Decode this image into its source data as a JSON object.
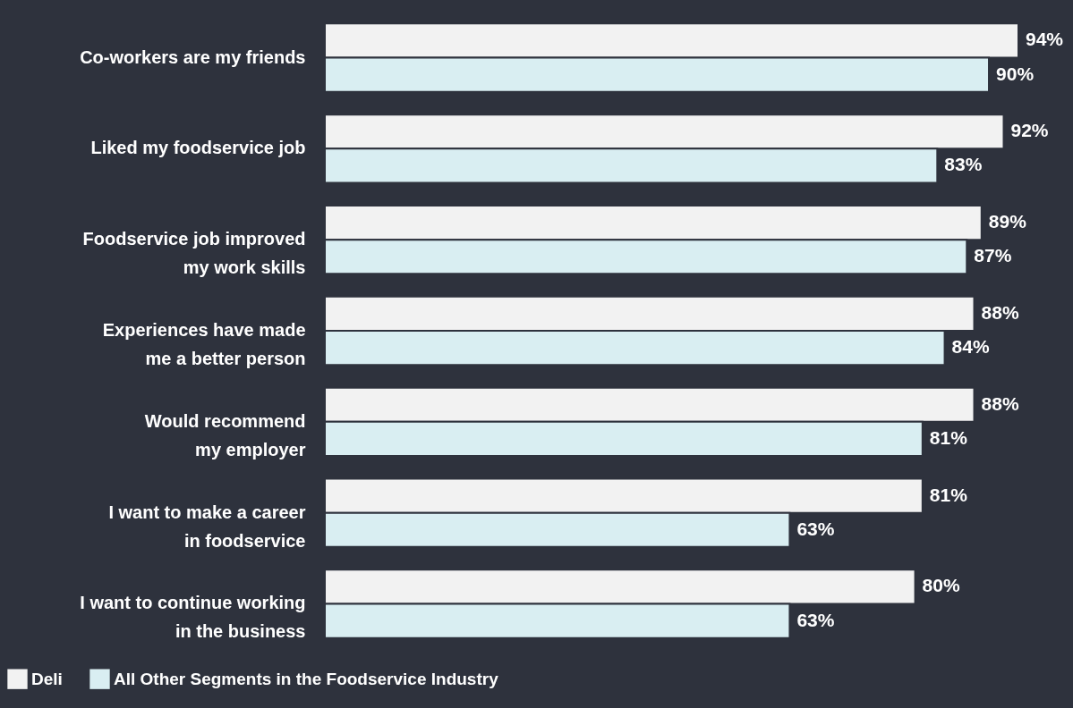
{
  "chart_data": {
    "type": "bar",
    "orientation": "horizontal",
    "categories": [
      "Co-workers are my friends",
      "Liked my foodservice job",
      "Foodservice job improved\nmy work skills",
      "Experiences have made\nme a better person",
      "Would recommend\nmy employer",
      "I want to make a career\nin foodservice",
      "I want to continue working\nin the business"
    ],
    "series": [
      {
        "name": "Deli",
        "color": "#f2f2f2",
        "values": [
          94,
          92,
          89,
          88,
          88,
          81,
          80
        ],
        "value_labels": [
          "94%",
          "92%",
          "89%",
          "88%",
          "88%",
          "81%",
          "80%"
        ]
      },
      {
        "name": "All Other Segments in the Foodservice Industry",
        "color": "#d9eef2",
        "values": [
          90,
          83,
          87,
          84,
          81,
          63,
          63
        ],
        "value_labels": [
          "90%",
          "83%",
          "87%",
          "84%",
          "81%",
          "63%",
          "63%"
        ]
      }
    ],
    "legend": "bottom left"
  }
}
